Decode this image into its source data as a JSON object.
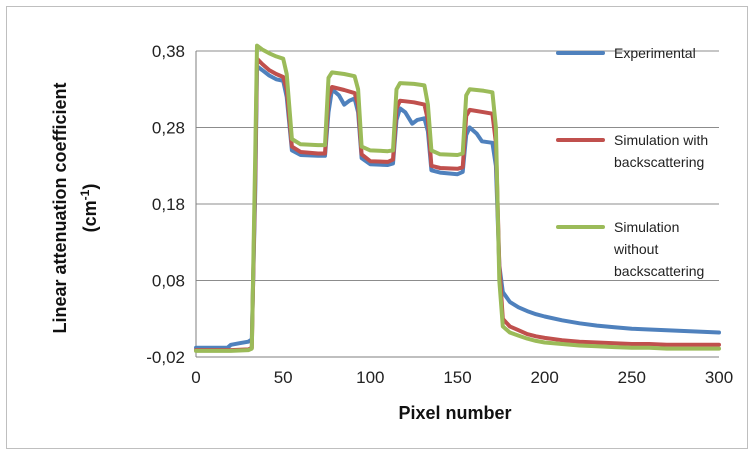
{
  "chart_data": {
    "type": "line",
    "title": "",
    "xlabel": "Pixel number",
    "ylabel_main": "Linear attenuation coefficient",
    "ylabel_unit_open": "(cm",
    "ylabel_unit_sup": "-1",
    "ylabel_unit_close": ")",
    "xlim": [
      0,
      300
    ],
    "ylim": [
      -0.02,
      0.38
    ],
    "x_ticks": [
      0,
      50,
      100,
      150,
      200,
      250,
      300
    ],
    "x_tick_labels": [
      "0",
      "50",
      "100",
      "150",
      "200",
      "250",
      "300"
    ],
    "y_ticks": [
      -0.02,
      0.08,
      0.18,
      0.28,
      0.38
    ],
    "y_tick_labels": [
      "-0,02",
      "0,08",
      "0,18",
      "0,28",
      "0,38"
    ],
    "grid": "horizontal",
    "legend_position": "right",
    "series": [
      {
        "name": "Experimental",
        "legend_lines": [
          "Experimental"
        ],
        "color": "#4f81bd",
        "points": [
          [
            0,
            -0.008
          ],
          [
            10,
            -0.008
          ],
          [
            18,
            -0.008
          ],
          [
            20,
            -0.004
          ],
          [
            25,
            -0.002
          ],
          [
            30,
            0.0
          ],
          [
            32,
            0.003
          ],
          [
            34,
            0.2
          ],
          [
            35,
            0.36
          ],
          [
            38,
            0.355
          ],
          [
            42,
            0.348
          ],
          [
            46,
            0.343
          ],
          [
            50,
            0.341
          ],
          [
            52,
            0.32
          ],
          [
            55,
            0.25
          ],
          [
            60,
            0.244
          ],
          [
            70,
            0.243
          ],
          [
            74,
            0.243
          ],
          [
            76,
            0.3
          ],
          [
            78,
            0.33
          ],
          [
            82,
            0.322
          ],
          [
            85,
            0.31
          ],
          [
            88,
            0.315
          ],
          [
            91,
            0.318
          ],
          [
            93,
            0.3
          ],
          [
            95,
            0.24
          ],
          [
            100,
            0.232
          ],
          [
            110,
            0.231
          ],
          [
            113,
            0.233
          ],
          [
            115,
            0.29
          ],
          [
            117,
            0.305
          ],
          [
            120,
            0.3
          ],
          [
            124,
            0.285
          ],
          [
            127,
            0.29
          ],
          [
            131,
            0.292
          ],
          [
            133,
            0.275
          ],
          [
            135,
            0.224
          ],
          [
            140,
            0.221
          ],
          [
            150,
            0.219
          ],
          [
            153,
            0.222
          ],
          [
            155,
            0.27
          ],
          [
            157,
            0.28
          ],
          [
            161,
            0.272
          ],
          [
            164,
            0.262
          ],
          [
            170,
            0.26
          ],
          [
            172,
            0.23
          ],
          [
            174,
            0.1
          ],
          [
            176,
            0.065
          ],
          [
            180,
            0.052
          ],
          [
            185,
            0.045
          ],
          [
            190,
            0.04
          ],
          [
            195,
            0.036
          ],
          [
            200,
            0.033
          ],
          [
            210,
            0.028
          ],
          [
            220,
            0.024
          ],
          [
            230,
            0.021
          ],
          [
            240,
            0.019
          ],
          [
            250,
            0.017
          ],
          [
            260,
            0.016
          ],
          [
            270,
            0.015
          ],
          [
            280,
            0.014
          ],
          [
            290,
            0.013
          ],
          [
            300,
            0.012
          ]
        ]
      },
      {
        "name": "Simulation with backscattering",
        "legend_lines": [
          "Simulation with",
          "backscattering"
        ],
        "color": "#c0504d",
        "points": [
          [
            0,
            -0.011
          ],
          [
            10,
            -0.011
          ],
          [
            20,
            -0.011
          ],
          [
            30,
            -0.01
          ],
          [
            32,
            -0.008
          ],
          [
            34,
            0.22
          ],
          [
            35,
            0.37
          ],
          [
            38,
            0.363
          ],
          [
            42,
            0.355
          ],
          [
            46,
            0.35
          ],
          [
            50,
            0.346
          ],
          [
            52,
            0.33
          ],
          [
            55,
            0.255
          ],
          [
            60,
            0.248
          ],
          [
            70,
            0.246
          ],
          [
            74,
            0.246
          ],
          [
            76,
            0.32
          ],
          [
            78,
            0.333
          ],
          [
            85,
            0.329
          ],
          [
            91,
            0.325
          ],
          [
            93,
            0.31
          ],
          [
            95,
            0.245
          ],
          [
            100,
            0.236
          ],
          [
            110,
            0.235
          ],
          [
            113,
            0.238
          ],
          [
            115,
            0.305
          ],
          [
            117,
            0.315
          ],
          [
            125,
            0.313
          ],
          [
            131,
            0.31
          ],
          [
            133,
            0.29
          ],
          [
            135,
            0.23
          ],
          [
            140,
            0.227
          ],
          [
            150,
            0.226
          ],
          [
            153,
            0.228
          ],
          [
            155,
            0.295
          ],
          [
            157,
            0.303
          ],
          [
            165,
            0.3
          ],
          [
            170,
            0.298
          ],
          [
            172,
            0.26
          ],
          [
            174,
            0.1
          ],
          [
            176,
            0.03
          ],
          [
            180,
            0.02
          ],
          [
            185,
            0.015
          ],
          [
            190,
            0.01
          ],
          [
            195,
            0.007
          ],
          [
            200,
            0.005
          ],
          [
            210,
            0.002
          ],
          [
            220,
            0.0
          ],
          [
            230,
            -0.001
          ],
          [
            240,
            -0.002
          ],
          [
            250,
            -0.003
          ],
          [
            260,
            -0.003
          ],
          [
            270,
            -0.004
          ],
          [
            280,
            -0.004
          ],
          [
            290,
            -0.004
          ],
          [
            300,
            -0.004
          ]
        ]
      },
      {
        "name": "Simulation without backscattering",
        "legend_lines": [
          "Simulation",
          "without",
          "backscattering"
        ],
        "color": "#9bbb59",
        "points": [
          [
            0,
            -0.012
          ],
          [
            10,
            -0.012
          ],
          [
            20,
            -0.012
          ],
          [
            30,
            -0.011
          ],
          [
            32,
            -0.009
          ],
          [
            34,
            0.25
          ],
          [
            35,
            0.387
          ],
          [
            38,
            0.382
          ],
          [
            42,
            0.377
          ],
          [
            46,
            0.373
          ],
          [
            50,
            0.37
          ],
          [
            52,
            0.35
          ],
          [
            55,
            0.265
          ],
          [
            60,
            0.258
          ],
          [
            70,
            0.257
          ],
          [
            74,
            0.257
          ],
          [
            76,
            0.345
          ],
          [
            78,
            0.352
          ],
          [
            85,
            0.35
          ],
          [
            91,
            0.347
          ],
          [
            93,
            0.33
          ],
          [
            95,
            0.255
          ],
          [
            100,
            0.25
          ],
          [
            110,
            0.249
          ],
          [
            113,
            0.25
          ],
          [
            115,
            0.33
          ],
          [
            117,
            0.338
          ],
          [
            125,
            0.337
          ],
          [
            131,
            0.335
          ],
          [
            133,
            0.31
          ],
          [
            135,
            0.25
          ],
          [
            140,
            0.245
          ],
          [
            150,
            0.244
          ],
          [
            153,
            0.246
          ],
          [
            155,
            0.322
          ],
          [
            157,
            0.33
          ],
          [
            165,
            0.328
          ],
          [
            170,
            0.326
          ],
          [
            172,
            0.28
          ],
          [
            174,
            0.08
          ],
          [
            176,
            0.02
          ],
          [
            180,
            0.012
          ],
          [
            185,
            0.008
          ],
          [
            190,
            0.004
          ],
          [
            195,
            0.001
          ],
          [
            200,
            -0.001
          ],
          [
            210,
            -0.003
          ],
          [
            220,
            -0.005
          ],
          [
            230,
            -0.006
          ],
          [
            240,
            -0.007
          ],
          [
            250,
            -0.008
          ],
          [
            260,
            -0.008
          ],
          [
            270,
            -0.009
          ],
          [
            280,
            -0.009
          ],
          [
            290,
            -0.009
          ],
          [
            300,
            -0.009
          ]
        ]
      }
    ]
  }
}
